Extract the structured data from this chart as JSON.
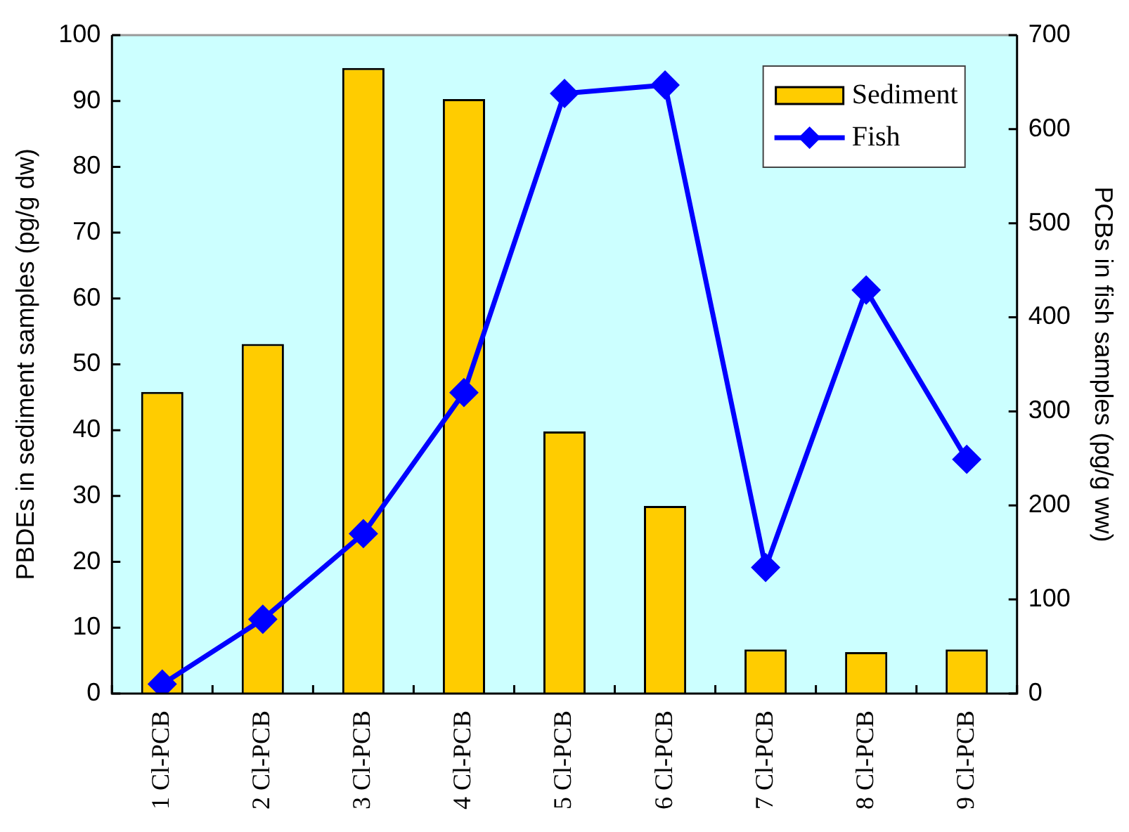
{
  "chart_data": {
    "type": "bar",
    "categories": [
      "1 Cl-PCB",
      "2 Cl-PCB",
      "3 Cl-PCB",
      "4 Cl-PCB",
      "5 Cl-PCB",
      "6 Cl-PCB",
      "7 Cl-PCB",
      "8 Cl-PCB",
      "9 Cl-PCB"
    ],
    "series": [
      {
        "name": "Sediment",
        "color": "#ffcc00",
        "values": [
          45.8,
          53.1,
          95.0,
          90.3,
          39.8,
          28.5,
          6.7,
          6.3,
          6.7
        ]
      },
      {
        "name": "Fish",
        "type": "line",
        "axis": "y2",
        "color": "#0000ff",
        "marker": "diamond",
        "values": [
          10,
          79,
          170,
          320,
          638,
          647,
          134,
          429,
          249
        ]
      }
    ],
    "ylabel": "PBDEs in sediment samples (pg/g dw)",
    "y2label": "PCBs in fish samples (pg/g ww)",
    "ylim": [
      0,
      100
    ],
    "yticks": [
      0,
      10,
      20,
      30,
      40,
      50,
      60,
      70,
      80,
      90,
      100
    ],
    "y2lim": [
      0,
      700
    ],
    "y2ticks": [
      0,
      100,
      200,
      300,
      400,
      500,
      600,
      700
    ],
    "grid": false,
    "legend": "top right"
  }
}
